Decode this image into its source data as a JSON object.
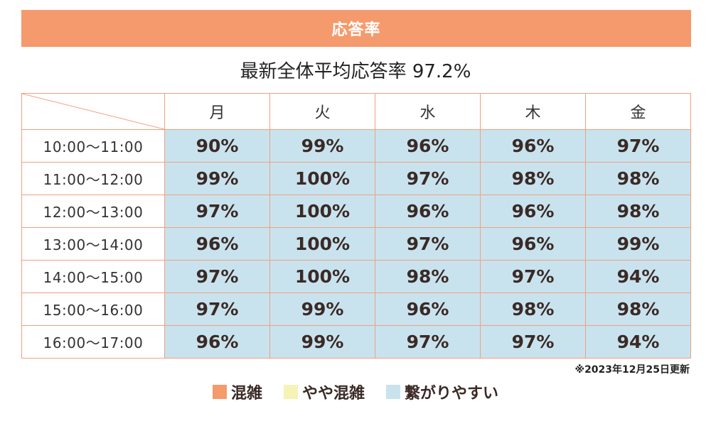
{
  "banner": {
    "title": "応答率"
  },
  "summary": {
    "text": "最新全体平均応答率 97.2%"
  },
  "updated_note": "※2023年12月25日更新",
  "legend": [
    {
      "label": "混雑",
      "color": "#f59a6c",
      "level": "busy"
    },
    {
      "label": "やや混雑",
      "color": "#f7f2b5",
      "level": "medium"
    },
    {
      "label": "繋がりやすい",
      "color": "#c9e3ee",
      "level": "easy"
    }
  ],
  "colors": {
    "banner": "#f59a6c",
    "border": "#f2a07d",
    "easy": "#c9e3ee"
  },
  "chart_data": {
    "type": "table",
    "title": "応答率",
    "subtitle": "最新全体平均応答率 97.2%",
    "columns": [
      "月",
      "火",
      "水",
      "木",
      "金"
    ],
    "rows": [
      {
        "time": "10:00～11:00",
        "values": [
          "90%",
          "99%",
          "96%",
          "96%",
          "97%"
        ]
      },
      {
        "time": "11:00～12:00",
        "values": [
          "99%",
          "100%",
          "97%",
          "98%",
          "98%"
        ]
      },
      {
        "time": "12:00～13:00",
        "values": [
          "97%",
          "100%",
          "96%",
          "96%",
          "98%"
        ]
      },
      {
        "time": "13:00～14:00",
        "values": [
          "96%",
          "100%",
          "97%",
          "96%",
          "99%"
        ]
      },
      {
        "time": "14:00～15:00",
        "values": [
          "97%",
          "100%",
          "98%",
          "97%",
          "94%"
        ]
      },
      {
        "time": "15:00～16:00",
        "values": [
          "97%",
          "99%",
          "96%",
          "98%",
          "98%"
        ]
      },
      {
        "time": "16:00～17:00",
        "values": [
          "96%",
          "99%",
          "97%",
          "97%",
          "94%"
        ]
      }
    ],
    "cell_level": "easy"
  }
}
